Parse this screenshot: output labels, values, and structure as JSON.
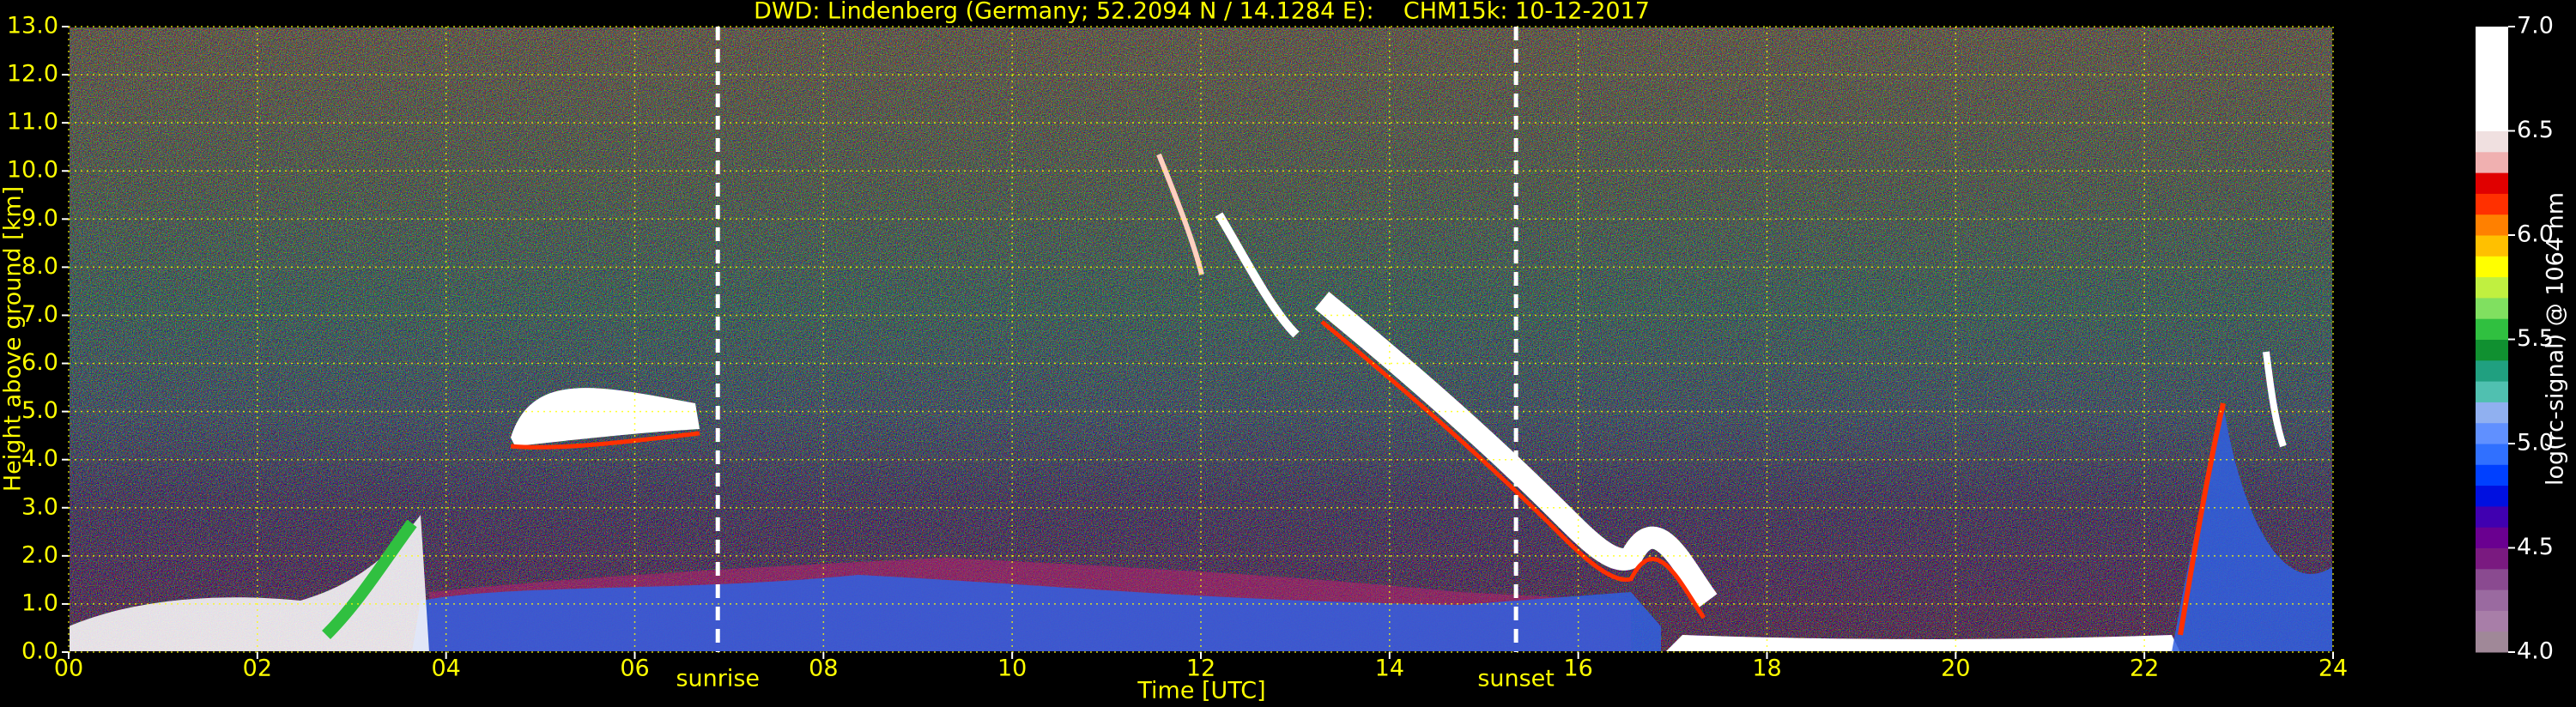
{
  "chart_data": {
    "type": "heatmap",
    "title": "DWD: Lindenberg (Germany; 52.2094 N / 14.1284 E):    CHM15k: 10-12-2017",
    "xlabel": "Time [UTC]",
    "ylabel": "Height above ground [km]",
    "xlim": [
      0,
      24
    ],
    "xticks": [
      {
        "value": 0,
        "label": "00"
      },
      {
        "value": 2,
        "label": "02"
      },
      {
        "value": 4,
        "label": "04"
      },
      {
        "value": 6,
        "label": "06"
      },
      {
        "value": 8,
        "label": "08"
      },
      {
        "value": 10,
        "label": "10"
      },
      {
        "value": 12,
        "label": "12"
      },
      {
        "value": 14,
        "label": "14"
      },
      {
        "value": 16,
        "label": "16"
      },
      {
        "value": 18,
        "label": "18"
      },
      {
        "value": 20,
        "label": "20"
      },
      {
        "value": 22,
        "label": "22"
      },
      {
        "value": 24,
        "label": "24"
      }
    ],
    "ylim": [
      0,
      13
    ],
    "yticks": [
      {
        "value": 0,
        "label": "0.0"
      },
      {
        "value": 1,
        "label": "1.0"
      },
      {
        "value": 2,
        "label": "2.0"
      },
      {
        "value": 3,
        "label": "3.0"
      },
      {
        "value": 4,
        "label": "4.0"
      },
      {
        "value": 5,
        "label": "5.0"
      },
      {
        "value": 6,
        "label": "6.0"
      },
      {
        "value": 7,
        "label": "7.0"
      },
      {
        "value": 8,
        "label": "8.0"
      },
      {
        "value": 9,
        "label": "9.0"
      },
      {
        "value": 10,
        "label": "10.0"
      },
      {
        "value": 11,
        "label": "11.0"
      },
      {
        "value": 12,
        "label": "12.0"
      },
      {
        "value": 13,
        "label": "13.0"
      }
    ],
    "grid": true,
    "grid_color": "#ffff00",
    "annotations": [
      {
        "x": 6.88,
        "label": "sunrise"
      },
      {
        "x": 15.34,
        "label": "sunset"
      }
    ],
    "colorbar": {
      "label": "log(rc-signal) @ 1064 nm",
      "clim": [
        4,
        7
      ],
      "ticks": [
        {
          "value": 4,
          "label": "4.0"
        },
        {
          "value": 4.5,
          "label": "4.5"
        },
        {
          "value": 5,
          "label": "5.0"
        },
        {
          "value": 5.5,
          "label": "5.5"
        },
        {
          "value": 6,
          "label": "6.0"
        },
        {
          "value": 6.5,
          "label": "6.5"
        },
        {
          "value": 7,
          "label": "7.0"
        }
      ],
      "colors": [
        "#a08898",
        "#a87ea8",
        "#9a6aa0",
        "#8a4a90",
        "#7a1a80",
        "#6a0090",
        "#4000b0",
        "#0010e0",
        "#0040ff",
        "#3070ff",
        "#6090ff",
        "#90b0f0",
        "#50c0b0",
        "#20a080",
        "#109030",
        "#30c040",
        "#80e060",
        "#c0f040",
        "#ffff00",
        "#ffc000",
        "#ff8000",
        "#ff3000",
        "#e00000",
        "#f0b0b0",
        "#f0e0e0",
        "#ffffff",
        "#ffffff",
        "#ffffff",
        "#ffffff",
        "#ffffff"
      ]
    }
  }
}
